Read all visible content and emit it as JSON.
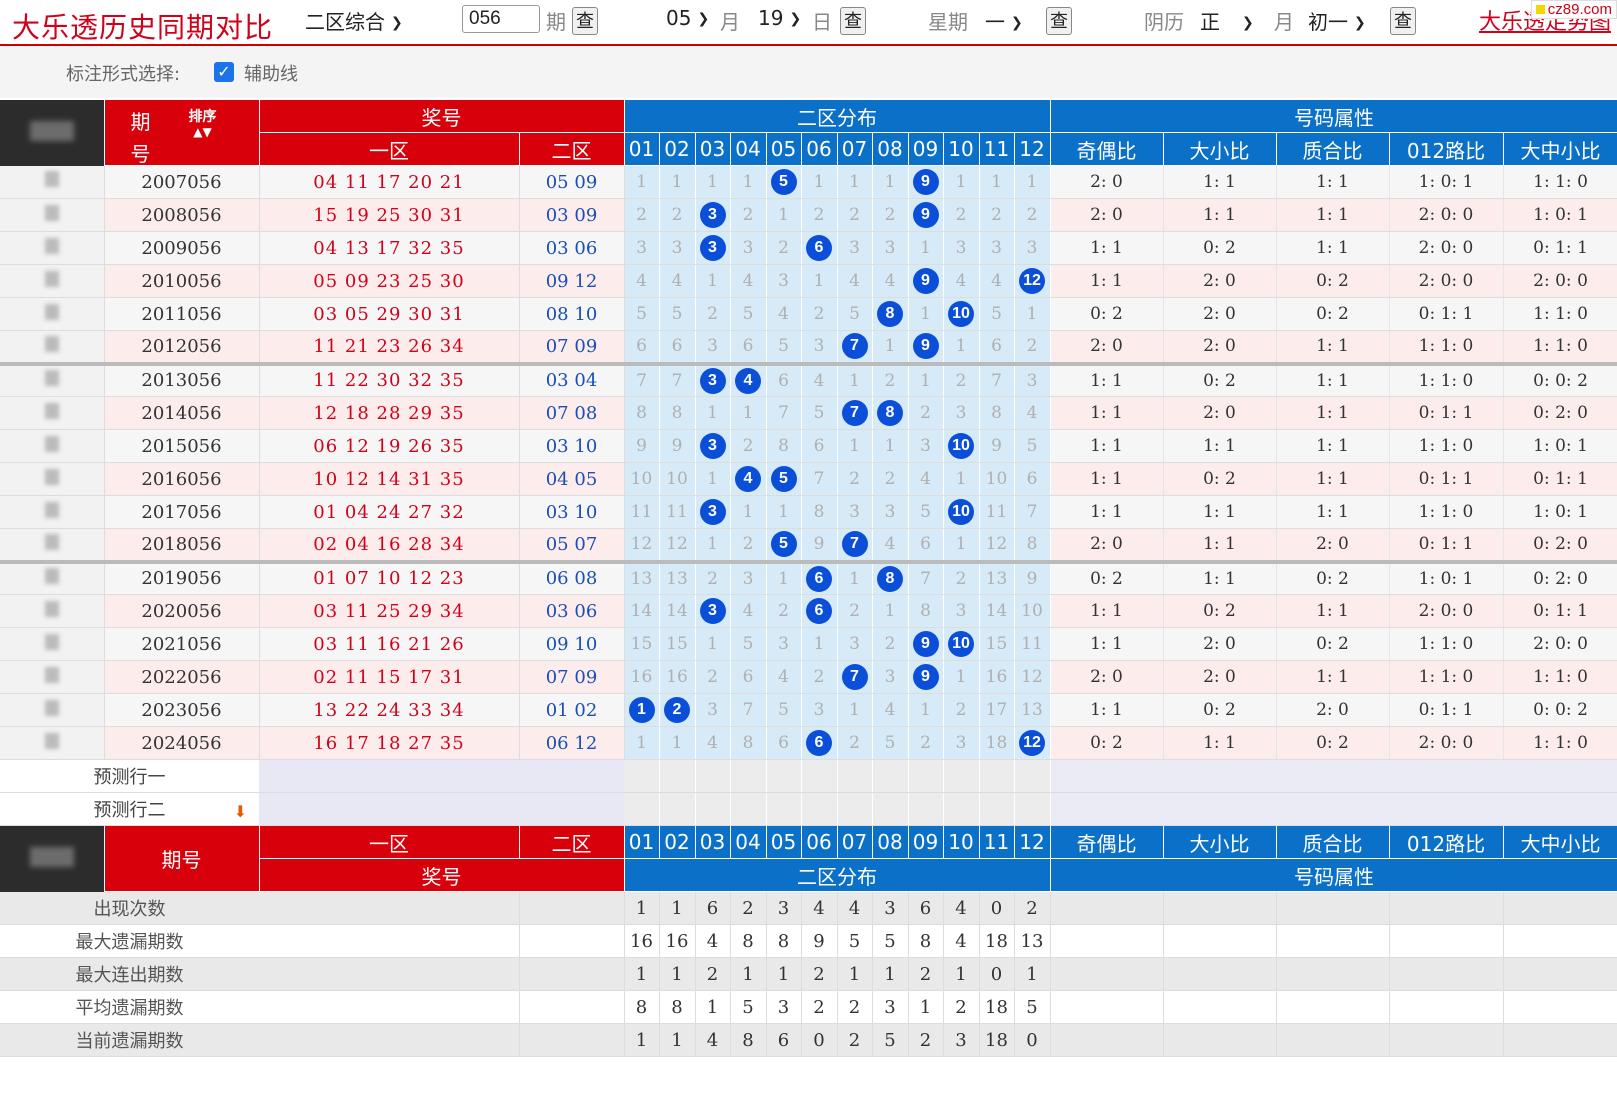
{
  "topbar": {
    "title": "大乐透历史同期对比",
    "zone_select": "二区综合",
    "period_input": "056",
    "period_label": "期",
    "query_label": "查",
    "month_value": "05",
    "month_label": "月",
    "day_value": "19",
    "day_label": "日",
    "week_label": "星期",
    "week_value": "一",
    "lunar_label": "阴历",
    "lunar_month": "正",
    "lunar_month_label": "月",
    "lunar_day": "初一",
    "link_text": "大乐透走势图",
    "watermark": "cz89.com"
  },
  "options": {
    "label": "标注形式选择:",
    "checkbox_label": "辅助线",
    "checked": true
  },
  "headers": {
    "period": "期号",
    "period_top": "期",
    "period_bottom": "号",
    "sort": "排序",
    "award": "奖号",
    "zone1": "一区",
    "zone2": "二区",
    "dist": "二区分布",
    "attr": "号码属性",
    "nums": [
      "01",
      "02",
      "03",
      "04",
      "05",
      "06",
      "07",
      "08",
      "09",
      "10",
      "11",
      "12"
    ],
    "attrs": [
      "奇偶比",
      "大小比",
      "质合比",
      "012路比",
      "大中小比"
    ]
  },
  "rows": [
    {
      "period": "2007056",
      "z1": "04 11 17 20 21",
      "z2": "05 09",
      "dist": [
        "1",
        "1",
        "1",
        "1",
        "5",
        "1",
        "1",
        "1",
        "9",
        "1",
        "1",
        "1"
      ],
      "hits": [
        5,
        9
      ],
      "attrs": [
        "2: 0",
        "1: 1",
        "1: 1",
        "1: 0: 1",
        "1: 1: 0"
      ]
    },
    {
      "period": "2008056",
      "z1": "15 19 25 30 31",
      "z2": "03 09",
      "dist": [
        "2",
        "2",
        "3",
        "2",
        "1",
        "2",
        "2",
        "2",
        "9",
        "2",
        "2",
        "2"
      ],
      "hits": [
        3,
        9
      ],
      "attrs": [
        "2: 0",
        "1: 1",
        "1: 1",
        "2: 0: 0",
        "1: 0: 1"
      ]
    },
    {
      "period": "2009056",
      "z1": "04 13 17 32 35",
      "z2": "03 06",
      "dist": [
        "3",
        "3",
        "3",
        "3",
        "2",
        "6",
        "3",
        "3",
        "1",
        "3",
        "3",
        "3"
      ],
      "hits": [
        3,
        6
      ],
      "attrs": [
        "1: 1",
        "0: 2",
        "1: 1",
        "2: 0: 0",
        "0: 1: 1"
      ]
    },
    {
      "period": "2010056",
      "z1": "05 09 23 25 30",
      "z2": "09 12",
      "dist": [
        "4",
        "4",
        "1",
        "4",
        "3",
        "1",
        "4",
        "4",
        "9",
        "4",
        "4",
        "12"
      ],
      "hits": [
        9,
        12
      ],
      "attrs": [
        "1: 1",
        "2: 0",
        "0: 2",
        "2: 0: 0",
        "2: 0: 0"
      ]
    },
    {
      "period": "2011056",
      "z1": "03 05 29 30 31",
      "z2": "08 10",
      "dist": [
        "5",
        "5",
        "2",
        "5",
        "4",
        "2",
        "5",
        "8",
        "1",
        "10",
        "5",
        "1"
      ],
      "hits": [
        8,
        10
      ],
      "attrs": [
        "0: 2",
        "2: 0",
        "0: 2",
        "0: 1: 1",
        "1: 1: 0"
      ]
    },
    {
      "period": "2012056",
      "z1": "11 21 23 26 34",
      "z2": "07 09",
      "dist": [
        "6",
        "6",
        "3",
        "6",
        "5",
        "3",
        "7",
        "1",
        "9",
        "1",
        "6",
        "2"
      ],
      "hits": [
        7,
        9
      ],
      "attrs": [
        "2: 0",
        "2: 0",
        "1: 1",
        "1: 1: 0",
        "1: 1: 0"
      ]
    },
    {
      "period": "2013056",
      "z1": "11 22 30 32 35",
      "z2": "03 04",
      "dist": [
        "7",
        "7",
        "3",
        "4",
        "6",
        "4",
        "1",
        "2",
        "1",
        "2",
        "7",
        "3"
      ],
      "hits": [
        3,
        4
      ],
      "attrs": [
        "1: 1",
        "0: 2",
        "1: 1",
        "1: 1: 0",
        "0: 0: 2"
      ]
    },
    {
      "period": "2014056",
      "z1": "12 18 28 29 35",
      "z2": "07 08",
      "dist": [
        "8",
        "8",
        "1",
        "1",
        "7",
        "5",
        "7",
        "8",
        "2",
        "3",
        "8",
        "4"
      ],
      "hits": [
        7,
        8
      ],
      "attrs": [
        "1: 1",
        "2: 0",
        "1: 1",
        "0: 1: 1",
        "0: 2: 0"
      ]
    },
    {
      "period": "2015056",
      "z1": "06 12 19 26 35",
      "z2": "03 10",
      "dist": [
        "9",
        "9",
        "3",
        "2",
        "8",
        "6",
        "1",
        "1",
        "3",
        "10",
        "9",
        "5"
      ],
      "hits": [
        3,
        10
      ],
      "attrs": [
        "1: 1",
        "1: 1",
        "1: 1",
        "1: 1: 0",
        "1: 0: 1"
      ]
    },
    {
      "period": "2016056",
      "z1": "10 12 14 31 35",
      "z2": "04 05",
      "dist": [
        "10",
        "10",
        "1",
        "4",
        "5",
        "7",
        "2",
        "2",
        "4",
        "1",
        "10",
        "6"
      ],
      "hits": [
        4,
        5
      ],
      "attrs": [
        "1: 1",
        "0: 2",
        "1: 1",
        "0: 1: 1",
        "0: 1: 1"
      ]
    },
    {
      "period": "2017056",
      "z1": "01 04 24 27 32",
      "z2": "03 10",
      "dist": [
        "11",
        "11",
        "3",
        "1",
        "1",
        "8",
        "3",
        "3",
        "5",
        "10",
        "11",
        "7"
      ],
      "hits": [
        3,
        10
      ],
      "attrs": [
        "1: 1",
        "1: 1",
        "1: 1",
        "1: 1: 0",
        "1: 0: 1"
      ]
    },
    {
      "period": "2018056",
      "z1": "02 04 16 28 34",
      "z2": "05 07",
      "dist": [
        "12",
        "12",
        "1",
        "2",
        "5",
        "9",
        "7",
        "4",
        "6",
        "1",
        "12",
        "8"
      ],
      "hits": [
        5,
        7
      ],
      "attrs": [
        "2: 0",
        "1: 1",
        "2: 0",
        "0: 1: 1",
        "0: 2: 0"
      ]
    },
    {
      "period": "2019056",
      "z1": "01 07 10 12 23",
      "z2": "06 08",
      "dist": [
        "13",
        "13",
        "2",
        "3",
        "1",
        "6",
        "1",
        "8",
        "7",
        "2",
        "13",
        "9"
      ],
      "hits": [
        6,
        8
      ],
      "attrs": [
        "0: 2",
        "1: 1",
        "0: 2",
        "1: 0: 1",
        "0: 2: 0"
      ]
    },
    {
      "period": "2020056",
      "z1": "03 11 25 29 34",
      "z2": "03 06",
      "dist": [
        "14",
        "14",
        "3",
        "4",
        "2",
        "6",
        "2",
        "1",
        "8",
        "3",
        "14",
        "10"
      ],
      "hits": [
        3,
        6
      ],
      "attrs": [
        "1: 1",
        "0: 2",
        "1: 1",
        "2: 0: 0",
        "0: 1: 1"
      ]
    },
    {
      "period": "2021056",
      "z1": "03 11 16 21 26",
      "z2": "09 10",
      "dist": [
        "15",
        "15",
        "1",
        "5",
        "3",
        "1",
        "3",
        "2",
        "9",
        "10",
        "15",
        "11"
      ],
      "hits": [
        9,
        10
      ],
      "attrs": [
        "1: 1",
        "2: 0",
        "0: 2",
        "1: 1: 0",
        "2: 0: 0"
      ]
    },
    {
      "period": "2022056",
      "z1": "02 11 15 17 31",
      "z2": "07 09",
      "dist": [
        "16",
        "16",
        "2",
        "6",
        "4",
        "2",
        "7",
        "3",
        "9",
        "1",
        "16",
        "12"
      ],
      "hits": [
        7,
        9
      ],
      "attrs": [
        "2: 0",
        "2: 0",
        "1: 1",
        "1: 1: 0",
        "1: 1: 0"
      ]
    },
    {
      "period": "2023056",
      "z1": "13 22 24 33 34",
      "z2": "01 02",
      "dist": [
        "1",
        "2",
        "3",
        "7",
        "5",
        "3",
        "1",
        "4",
        "1",
        "2",
        "17",
        "13"
      ],
      "hits": [
        1,
        2
      ],
      "attrs": [
        "1: 1",
        "0: 2",
        "2: 0",
        "0: 1: 1",
        "0: 0: 2"
      ]
    },
    {
      "period": "2024056",
      "z1": "16 17 18 27 35",
      "z2": "06 12",
      "dist": [
        "1",
        "1",
        "4",
        "8",
        "6",
        "6",
        "2",
        "5",
        "2",
        "3",
        "18",
        "12"
      ],
      "hits": [
        6,
        12
      ],
      "attrs": [
        "0: 2",
        "1: 1",
        "0: 2",
        "2: 0: 0",
        "1: 1: 0"
      ]
    }
  ],
  "predict": [
    "预测行一",
    "预测行二"
  ],
  "stats": [
    {
      "label": "出现次数",
      "values": [
        "1",
        "1",
        "6",
        "2",
        "3",
        "4",
        "4",
        "3",
        "6",
        "4",
        "0",
        "2"
      ]
    },
    {
      "label": "最大遗漏期数",
      "values": [
        "16",
        "16",
        "4",
        "8",
        "8",
        "9",
        "5",
        "5",
        "8",
        "4",
        "18",
        "13"
      ]
    },
    {
      "label": "最大连出期数",
      "values": [
        "1",
        "1",
        "2",
        "1",
        "1",
        "2",
        "1",
        "1",
        "2",
        "1",
        "0",
        "1"
      ]
    },
    {
      "label": "平均遗漏期数",
      "values": [
        "8",
        "8",
        "1",
        "5",
        "3",
        "2",
        "2",
        "3",
        "1",
        "2",
        "18",
        "5"
      ]
    },
    {
      "label": "当前遗漏期数",
      "values": [
        "1",
        "1",
        "4",
        "8",
        "6",
        "0",
        "2",
        "5",
        "2",
        "3",
        "18",
        "0"
      ]
    }
  ]
}
